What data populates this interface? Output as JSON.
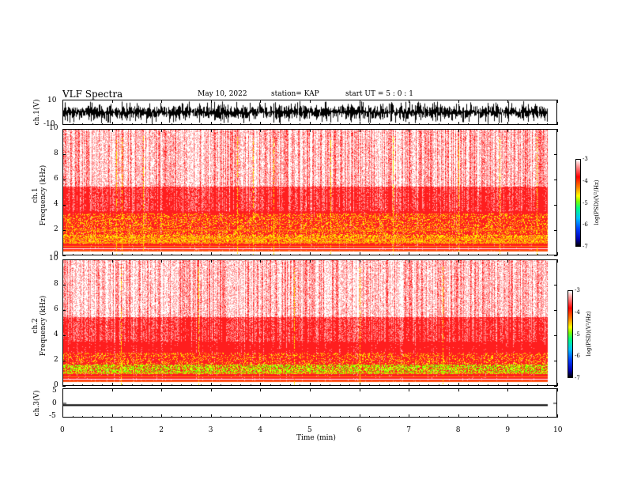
{
  "header": {
    "title": "VLF Spectra",
    "date": "May 10, 2022",
    "station": "station= KAP",
    "start": "start  UT =  5 : 0  : 1"
  },
  "chart_data": [
    {
      "type": "line",
      "name": "waveform-ch1",
      "ylabel": "ch.1(V)",
      "ylim": [
        -10,
        10
      ],
      "ytick_labels": [
        "10",
        "-10"
      ],
      "xlim": [
        0,
        10
      ],
      "data_extent_min": 9.83,
      "description_values": {
        "typical_range": [
          -6,
          6
        ],
        "peak_range": [
          -9.5,
          9.5
        ]
      }
    },
    {
      "type": "heatmap",
      "name": "spectrogram-ch1",
      "ylabel": "ch.1\nFrequency (kHz)",
      "ylabel_lines": [
        "ch.1",
        "Frequency  (kHz)"
      ],
      "ylim": [
        0,
        10
      ],
      "yticks": [
        0,
        2,
        4,
        6,
        8,
        10
      ],
      "xlim": [
        0,
        10
      ],
      "data_extent_min": 9.83,
      "colorbar": {
        "label": "log(PSD)(V²/Hz)",
        "range": [
          -7,
          -3
        ],
        "ticks": [
          -3,
          -4,
          -5,
          -6,
          -7
        ]
      }
    },
    {
      "type": "heatmap",
      "name": "spectrogram-ch2",
      "ylabel_lines": [
        "ch.2",
        "Frequency  (kHz)"
      ],
      "ylim": [
        0,
        10
      ],
      "yticks": [
        0,
        2,
        4,
        6,
        8,
        10
      ],
      "xlim": [
        0,
        10
      ],
      "data_extent_min": 9.83,
      "colorbar": {
        "label": "log(PSD)(V²/Hz)",
        "range": [
          -7,
          -3
        ],
        "ticks": [
          -3,
          -4,
          -5,
          -6,
          -7
        ]
      }
    },
    {
      "type": "line",
      "name": "waveform-ch3",
      "ylabel": "ch.3(V)",
      "ylim": [
        -5,
        5
      ],
      "yticks": [
        5,
        0,
        -5
      ],
      "ytick_labels": [
        "5",
        "0",
        "-5"
      ],
      "xlim": [
        0,
        10
      ],
      "data_extent_min": 9.83,
      "description_values": {
        "mean": -0.8,
        "band": [
          -1.1,
          -0.5
        ]
      }
    }
  ],
  "xaxis": {
    "label": "Time  (min)",
    "ticks": [
      0,
      1,
      2,
      3,
      4,
      5,
      6,
      7,
      8,
      9,
      10
    ],
    "tick_labels": [
      "0",
      "1",
      "2",
      "3",
      "4",
      "5",
      "6",
      "7",
      "8",
      "9",
      "10"
    ]
  },
  "colors": {
    "axis": "#000000",
    "spec_base": "#ff2020",
    "spec_high": "#ffffff",
    "spec_low": "#ffff00"
  }
}
